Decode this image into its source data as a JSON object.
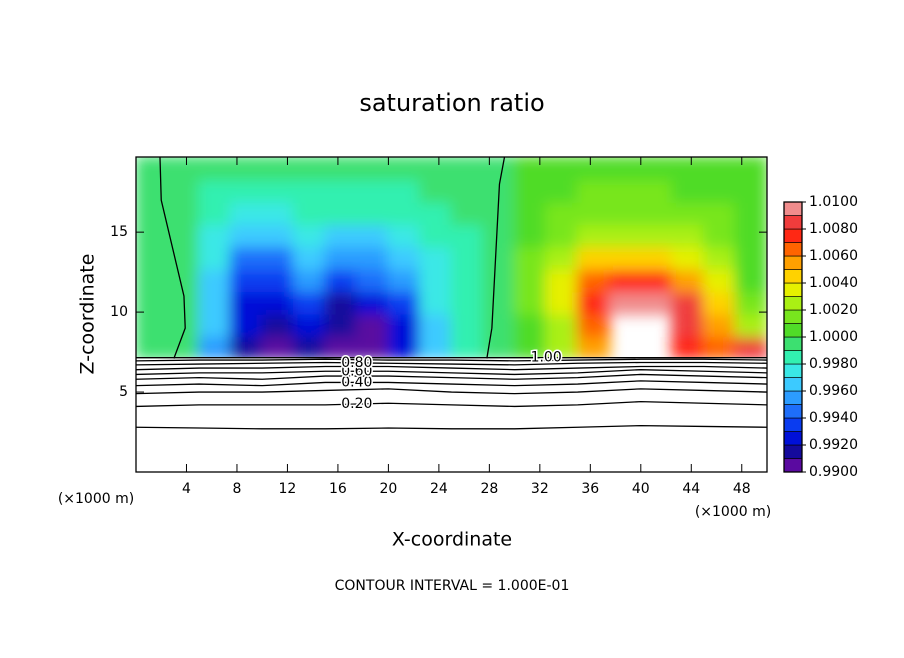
{
  "chart_data": {
    "type": "contour",
    "title": "saturation ratio",
    "xlabel": "X-coordinate",
    "ylabel": "Z-coordinate",
    "xunit": "(×1000 m)",
    "yunit": "(×1000 m)",
    "footer": "CONTOUR INTERVAL = 1.000E-01",
    "xlim": [
      0,
      50
    ],
    "ylim": [
      0,
      19.7
    ],
    "xticks": [
      4,
      8,
      12,
      16,
      20,
      24,
      28,
      32,
      36,
      40,
      44,
      48
    ],
    "yticks": [
      5,
      10,
      15
    ],
    "field": {
      "x": [
        1.25,
        3.75,
        6.25,
        8.75,
        11.25,
        13.75,
        16.25,
        18.75,
        21.25,
        23.75,
        26.25,
        28.75,
        31.25,
        33.75,
        36.25,
        38.75,
        41.25,
        43.75,
        46.25,
        48.75
      ],
      "z": [
        7.8,
        9.2,
        10.6,
        12,
        13.4,
        14.8,
        16.2,
        17.6,
        19
      ],
      "values": [
        [
          0.9995,
          0.9995,
          0.995,
          0.991,
          0.99,
          0.991,
          0.99,
          0.99,
          0.992,
          0.996,
          0.9985,
          0.9995,
          1.0005,
          1.002,
          1.005,
          null,
          null,
          1.007,
          1.006,
          1.008
        ],
        [
          0.9995,
          0.9995,
          0.996,
          0.992,
          0.991,
          0.992,
          0.991,
          0.99,
          0.992,
          0.996,
          0.9985,
          0.9995,
          1.0005,
          1.002,
          1.006,
          null,
          null,
          1.008,
          1.005,
          1.002
        ],
        [
          0.9995,
          0.9995,
          0.996,
          0.992,
          0.992,
          0.993,
          0.991,
          0.992,
          0.993,
          0.997,
          0.9985,
          0.9995,
          1.001,
          1.003,
          1.007,
          1.009,
          1.009,
          1.008,
          1.004,
          1.001
        ],
        [
          0.9995,
          0.9995,
          0.996,
          0.993,
          0.993,
          0.995,
          0.993,
          0.994,
          0.995,
          0.997,
          0.9985,
          0.9995,
          1.001,
          1.003,
          1.006,
          1.007,
          1.007,
          1.005,
          1.003,
          1.0005
        ],
        [
          0.9995,
          0.9995,
          0.997,
          0.994,
          0.994,
          0.996,
          0.995,
          0.995,
          0.996,
          0.9975,
          0.9985,
          0.9995,
          1.001,
          1.002,
          1.004,
          1.004,
          1.004,
          1.003,
          1.002,
          1.0005
        ],
        [
          0.9995,
          0.9995,
          0.9975,
          0.996,
          0.996,
          0.997,
          0.9965,
          0.9965,
          0.997,
          0.998,
          0.9985,
          0.9995,
          1.0005,
          1.0015,
          1.002,
          1.0025,
          1.0025,
          1.002,
          1.0015,
          1.0005
        ],
        [
          0.9995,
          0.9995,
          0.998,
          0.9975,
          0.9975,
          0.998,
          0.998,
          0.998,
          0.998,
          0.9985,
          0.999,
          0.9995,
          1.0005,
          1.001,
          1.0015,
          1.0015,
          1.0015,
          1.001,
          1.001,
          1.0005
        ],
        [
          0.9995,
          0.9995,
          0.9985,
          0.9985,
          0.9985,
          0.9985,
          0.9985,
          0.9985,
          0.9985,
          0.999,
          0.999,
          0.9995,
          1.0,
          1.0005,
          1.001,
          1.001,
          1.001,
          1.0005,
          1.0005,
          1.0005
        ],
        [
          0.9995,
          0.9995,
          0.999,
          0.999,
          0.999,
          0.999,
          0.999,
          0.999,
          0.999,
          0.999,
          0.9995,
          0.9995,
          1.0,
          1.0,
          1.0005,
          1.0005,
          1.0005,
          1.0005,
          1.0005,
          1.0005
        ]
      ]
    },
    "colorbar": {
      "lim": [
        0.99,
        1.01
      ],
      "colors": [
        "#5a0aa0",
        "#140a9c",
        "#0010d8",
        "#0a3cf0",
        "#1e6efa",
        "#2c9cff",
        "#3ccaff",
        "#3ae8e6",
        "#32f0b0",
        "#3ce070",
        "#50dc28",
        "#78e61e",
        "#aaf014",
        "#e6f000",
        "#ffd200",
        "#ffa000",
        "#ff6400",
        "#ff2814",
        "#f03c3c",
        "#f08c8c"
      ],
      "ticks": [
        {
          "value": 0.99,
          "label": "0.9900"
        },
        {
          "value": 0.992,
          "label": "0.9920"
        },
        {
          "value": 0.994,
          "label": "0.9940"
        },
        {
          "value": 0.996,
          "label": "0.9960"
        },
        {
          "value": 0.998,
          "label": "0.9980"
        },
        {
          "value": 1.0,
          "label": "1.0000"
        },
        {
          "value": 1.002,
          "label": "1.0020"
        },
        {
          "value": 1.004,
          "label": "1.0040"
        },
        {
          "value": 1.006,
          "label": "1.0060"
        },
        {
          "value": 1.008,
          "label": "1.0080"
        },
        {
          "value": 1.01,
          "label": "1.0100"
        }
      ]
    },
    "contours": [
      {
        "level": 0.1,
        "x": [
          0,
          5,
          10,
          15,
          20,
          25,
          30,
          35,
          40,
          45,
          50
        ],
        "z": [
          2.8,
          2.75,
          2.7,
          2.7,
          2.75,
          2.7,
          2.7,
          2.8,
          2.9,
          2.85,
          2.8
        ]
      },
      {
        "level": 0.2,
        "label": "0.20",
        "x": [
          0,
          5,
          10,
          15,
          20,
          25,
          30,
          35,
          40,
          45,
          50
        ],
        "z": [
          4.1,
          4.2,
          4.2,
          4.2,
          4.3,
          4.2,
          4.1,
          4.2,
          4.4,
          4.3,
          4.2
        ]
      },
      {
        "level": 0.3,
        "x": [
          0,
          5,
          10,
          15,
          20,
          25,
          30,
          35,
          40,
          45,
          50
        ],
        "z": [
          4.9,
          5.0,
          5.0,
          5.1,
          5.2,
          5.0,
          4.9,
          5.0,
          5.2,
          5.1,
          5.0
        ]
      },
      {
        "level": 0.4,
        "label": "0.40",
        "x": [
          0,
          5,
          10,
          15,
          20,
          25,
          30,
          35,
          40,
          45,
          50
        ],
        "z": [
          5.4,
          5.5,
          5.4,
          5.6,
          5.6,
          5.5,
          5.4,
          5.5,
          5.7,
          5.6,
          5.5
        ]
      },
      {
        "level": 0.5,
        "x": [
          0,
          5,
          10,
          15,
          20,
          25,
          30,
          35,
          40,
          45,
          50
        ],
        "z": [
          5.8,
          5.9,
          5.8,
          6.0,
          6.0,
          5.9,
          5.8,
          5.9,
          6.1,
          6.0,
          5.9
        ]
      },
      {
        "level": 0.6,
        "label": "0.60",
        "x": [
          0,
          5,
          10,
          15,
          20,
          25,
          30,
          35,
          40,
          45,
          50
        ],
        "z": [
          6.1,
          6.2,
          6.2,
          6.3,
          6.3,
          6.2,
          6.1,
          6.2,
          6.4,
          6.3,
          6.2
        ]
      },
      {
        "level": 0.7,
        "x": [
          0,
          5,
          10,
          15,
          20,
          25,
          30,
          35,
          40,
          45,
          50
        ],
        "z": [
          6.4,
          6.5,
          6.5,
          6.6,
          6.6,
          6.5,
          6.4,
          6.5,
          6.6,
          6.6,
          6.5
        ]
      },
      {
        "level": 0.8,
        "label": "0.80",
        "x": [
          0,
          5,
          10,
          15,
          20,
          25,
          30,
          35,
          40,
          45,
          50
        ],
        "z": [
          6.7,
          6.75,
          6.8,
          6.85,
          6.8,
          6.75,
          6.7,
          6.8,
          6.85,
          6.85,
          6.8
        ]
      },
      {
        "level": 0.9,
        "x": [
          0,
          5,
          10,
          15,
          20,
          25,
          30,
          35,
          40,
          45,
          50
        ],
        "z": [
          6.95,
          7.0,
          7.0,
          7.05,
          7.0,
          7.0,
          6.95,
          7.0,
          7.05,
          7.05,
          7.0
        ]
      },
      {
        "level": 1.0,
        "label": "1.00",
        "x": [
          0,
          10,
          20,
          30,
          40,
          50
        ],
        "z": [
          7.15,
          7.15,
          7.15,
          7.15,
          7.15,
          7.15
        ]
      },
      {
        "level": 1.0,
        "x": [
          1.9,
          2.0,
          2.6,
          3.2,
          3.8,
          3.9,
          3.0
        ],
        "z": [
          19.7,
          17,
          15,
          13,
          11,
          9,
          7.1
        ]
      },
      {
        "level": 1.0,
        "x": [
          29.2,
          28.8,
          28.6,
          28.4,
          28.2,
          27.8
        ],
        "z": [
          19.7,
          18,
          15,
          12,
          9,
          7.1
        ]
      }
    ]
  }
}
